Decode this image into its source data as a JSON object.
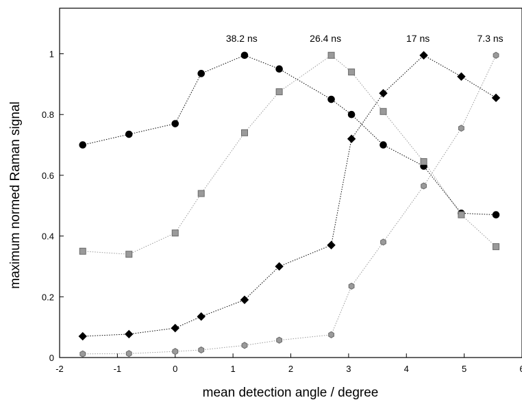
{
  "chart_data": {
    "type": "line",
    "title": "",
    "xlabel": "mean detection angle / degree",
    "ylabel": "maximum normed Raman signal",
    "xlim": [
      -2,
      6
    ],
    "ylim": [
      0,
      1.15
    ],
    "x_ticks": [
      -2,
      -1,
      0,
      1,
      2,
      3,
      4,
      5,
      6
    ],
    "x_tick_labels": [
      "-2",
      "-1",
      "0",
      "1",
      "2",
      "3",
      "4",
      "5",
      "6"
    ],
    "y_ticks": [
      0,
      0.2,
      0.4,
      0.6,
      0.8,
      1
    ],
    "y_tick_labels": [
      "0",
      "0.2",
      "0.4",
      "0.6",
      "0.8",
      "1"
    ],
    "grid": false,
    "legend": "none",
    "series": [
      {
        "name": "38.2 ns",
        "marker": "circle",
        "color": "#000000",
        "x": [
          -1.6,
          -0.8,
          0,
          0.45,
          1.2,
          1.8,
          2.7,
          3.05,
          3.6,
          4.3,
          4.95,
          5.55
        ],
        "y": [
          0.7,
          0.735,
          0.77,
          0.935,
          0.995,
          0.95,
          0.85,
          0.8,
          0.7,
          0.63,
          0.475,
          0.47
        ]
      },
      {
        "name": "26.4 ns",
        "marker": "square",
        "color": "#9a9a9a",
        "x": [
          -1.6,
          -0.8,
          0,
          0.45,
          1.2,
          1.8,
          2.7,
          3.05,
          3.6,
          4.3,
          4.95,
          5.55
        ],
        "y": [
          0.35,
          0.34,
          0.41,
          0.54,
          0.74,
          0.875,
          0.995,
          0.94,
          0.81,
          0.645,
          0.47,
          0.365
        ]
      },
      {
        "name": "17 ns",
        "marker": "diamond",
        "color": "#000000",
        "x": [
          -1.6,
          -0.8,
          0,
          0.45,
          1.2,
          1.8,
          2.7,
          3.05,
          3.6,
          4.3,
          4.95,
          5.55
        ],
        "y": [
          0.07,
          0.077,
          0.097,
          0.135,
          0.19,
          0.3,
          0.37,
          0.72,
          0.87,
          0.995,
          0.925,
          0.855
        ]
      },
      {
        "name": "7.3 ns",
        "marker": "hexagon",
        "color": "#9a9a9a",
        "x": [
          -1.6,
          -0.8,
          0,
          0.45,
          1.2,
          1.8,
          2.7,
          3.05,
          3.6,
          4.3,
          4.95,
          5.55
        ],
        "y": [
          0.012,
          0.013,
          0.02,
          0.025,
          0.04,
          0.057,
          0.075,
          0.235,
          0.38,
          0.565,
          0.755,
          0.995
        ]
      }
    ],
    "annotations": [
      {
        "text": "38.2 ns",
        "x": 1.15,
        "y": 1.04
      },
      {
        "text": "26.4 ns",
        "x": 2.6,
        "y": 1.04
      },
      {
        "text": "17 ns",
        "x": 4.2,
        "y": 1.04
      },
      {
        "text": "7.3 ns",
        "x": 5.45,
        "y": 1.04
      }
    ]
  }
}
